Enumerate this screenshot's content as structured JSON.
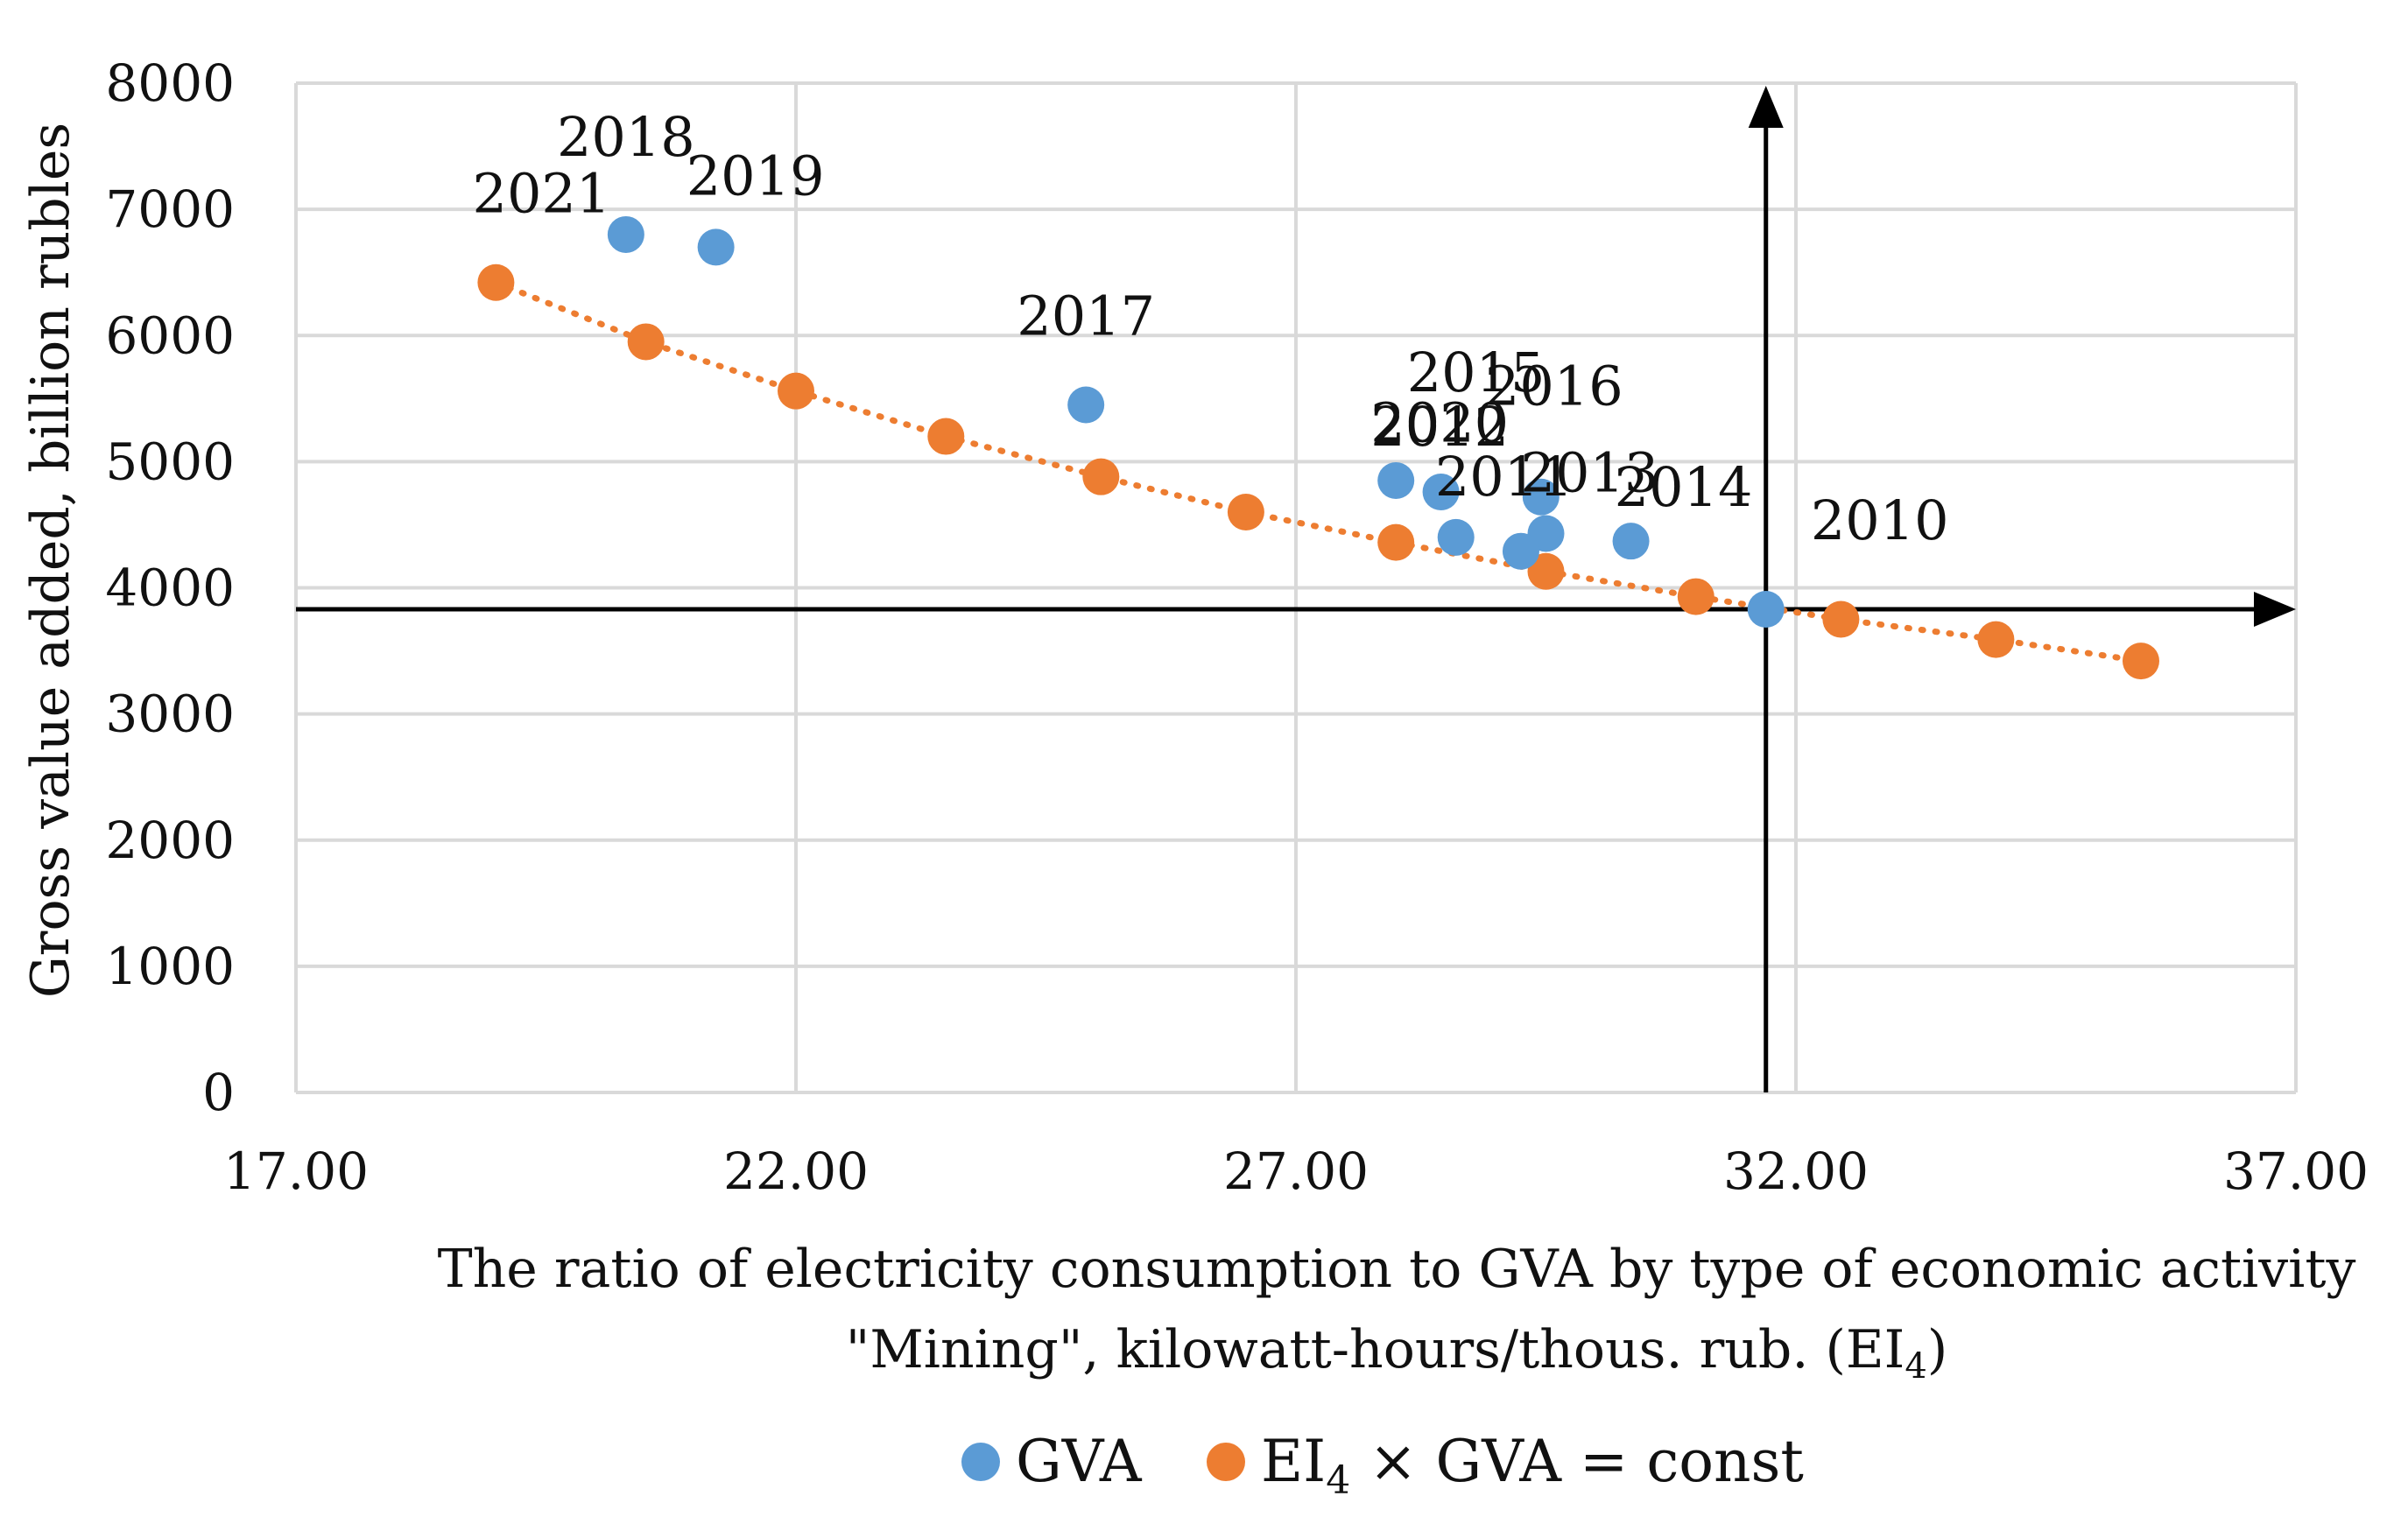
{
  "chart_data": {
    "type": "scatter",
    "title": "",
    "xlabel_line1": "The ratio of electricity consumption to GVA by type of economic activity",
    "xlabel_line2_main": "\"Mining\", kilowatt-hours/thous. rub. (EI",
    "xlabel_line2_sub": "4",
    "xlabel_line2_end": ")",
    "ylabel": "Gross value added, billion rubles",
    "xlim": [
      17,
      37
    ],
    "ylim": [
      0,
      8000
    ],
    "x_ticks": [
      17,
      22,
      27,
      32,
      37
    ],
    "x_tick_labels": [
      "17.00",
      "22.00",
      "27.00",
      "32.00",
      "37.00"
    ],
    "y_ticks": [
      0,
      1000,
      2000,
      3000,
      4000,
      5000,
      6000,
      7000,
      8000
    ],
    "y_tick_labels": [
      "0",
      "1000",
      "2000",
      "3000",
      "4000",
      "5000",
      "6000",
      "7000",
      "8000"
    ],
    "grid": true,
    "reference_lines": {
      "x": 31.7,
      "y": 3830
    },
    "colors": {
      "gva": "#5b9bd5",
      "const": "#ed7d31",
      "axis": "#000000",
      "grid": "#d9d9d9"
    },
    "series": [
      {
        "name": "GVA",
        "points": [
          {
            "x": 31.7,
            "y": 3830,
            "label": "2010"
          },
          {
            "x": 28.6,
            "y": 4400,
            "label": "2011"
          },
          {
            "x": 28.0,
            "y": 4850,
            "label": "2012"
          },
          {
            "x": 29.5,
            "y": 4430,
            "label": "2013"
          },
          {
            "x": 30.35,
            "y": 4370,
            "label": "2014"
          },
          {
            "x": 28.45,
            "y": 4760,
            "label": "2015"
          },
          {
            "x": 29.45,
            "y": 4720,
            "label": "2016"
          },
          {
            "x": 24.9,
            "y": 5450,
            "label": "2017"
          },
          {
            "x": 20.3,
            "y": 6800,
            "label": "2018"
          },
          {
            "x": 21.2,
            "y": 6700,
            "label": "2019"
          },
          {
            "x": 29.25,
            "y": 4290,
            "label": ""
          }
        ]
      },
      {
        "name": "EI4 × GVA = const",
        "trendline": "dotted",
        "points": [
          {
            "x": 19.0,
            "y": 6420,
            "label": "2021"
          },
          {
            "x": 20.5,
            "y": 5950,
            "label": ""
          },
          {
            "x": 22.0,
            "y": 5560,
            "label": ""
          },
          {
            "x": 23.5,
            "y": 5200,
            "label": ""
          },
          {
            "x": 25.05,
            "y": 4880,
            "label": ""
          },
          {
            "x": 26.5,
            "y": 4600,
            "label": ""
          },
          {
            "x": 28.0,
            "y": 4360,
            "label": "2020"
          },
          {
            "x": 29.5,
            "y": 4130,
            "label": ""
          },
          {
            "x": 31.0,
            "y": 3930,
            "label": ""
          },
          {
            "x": 32.45,
            "y": 3750,
            "label": ""
          },
          {
            "x": 34.0,
            "y": 3590,
            "label": ""
          },
          {
            "x": 35.45,
            "y": 3420,
            "label": ""
          }
        ]
      }
    ],
    "legend": [
      {
        "name_main": "GVA",
        "name_sub": "",
        "name_end": "",
        "color": "#5b9bd5"
      },
      {
        "name_main": "EI",
        "name_sub": "4",
        "name_end": " × GVA = const",
        "color": "#ed7d31"
      }
    ]
  }
}
